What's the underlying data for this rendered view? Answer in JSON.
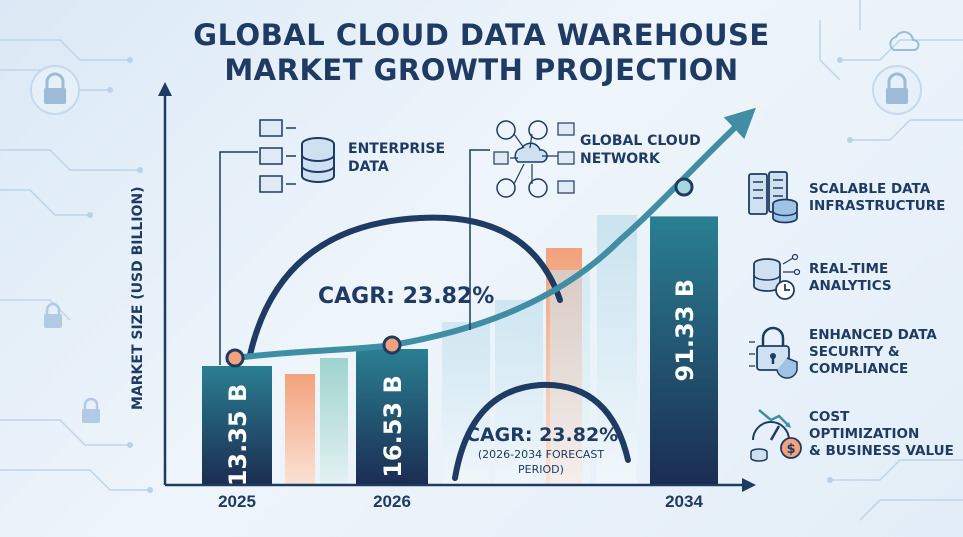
{
  "title": {
    "line1": "GLOBAL CLOUD DATA WAREHOUSE",
    "line2": "MARKET GROWTH PROJECTION"
  },
  "callouts": {
    "enterprise": [
      "ENTERPRISE",
      "DATA"
    ],
    "network": [
      "GLOBAL CLOUD",
      "NETWORK"
    ]
  },
  "cagr": {
    "main": "CAGR: 23.82%",
    "secondary": "CAGR: 23.82%",
    "period_line1": "(2026-2034 FORECAST",
    "period_line2": "PERIOD)"
  },
  "features": [
    {
      "icon": "servers-database-icon",
      "lines": [
        "SCALABLE DATA",
        "INFRASTRUCTURE"
      ]
    },
    {
      "icon": "realtime-analytics-icon",
      "lines": [
        "REAL-TIME",
        "ANALYTICS"
      ]
    },
    {
      "icon": "security-shield-icon",
      "lines": [
        "ENHANCED DATA",
        "SECURITY &",
        "COMPLIANCE"
      ]
    },
    {
      "icon": "cost-optimization-icon",
      "lines": [
        "COST OPTIMIZATION",
        "& BUSINESS VALUE"
      ]
    }
  ],
  "chart_data": {
    "type": "bar",
    "title": "GLOBAL CLOUD DATA WAREHOUSE MARKET GROWTH PROJECTION",
    "ylabel": "MARKET SIZE (USD BILLION)",
    "xlabel": "",
    "categories": [
      "2025",
      "2026",
      "2034"
    ],
    "values": [
      13.35,
      16.53,
      91.33
    ],
    "value_labels": [
      "13.35 B",
      "16.53 B",
      "91.33 B"
    ],
    "ylim": [
      0,
      110
    ],
    "grid": false,
    "colors": {
      "bar_dark_top": "#2a7f92",
      "bar_dark_bottom": "#1b2d52",
      "arrow": "#3f8ea3",
      "arc": "#1f3b63",
      "accent_orange": "#f2a27c",
      "accent_teal": "#9fd3cf",
      "accent_light": "#c9e3ef"
    }
  }
}
